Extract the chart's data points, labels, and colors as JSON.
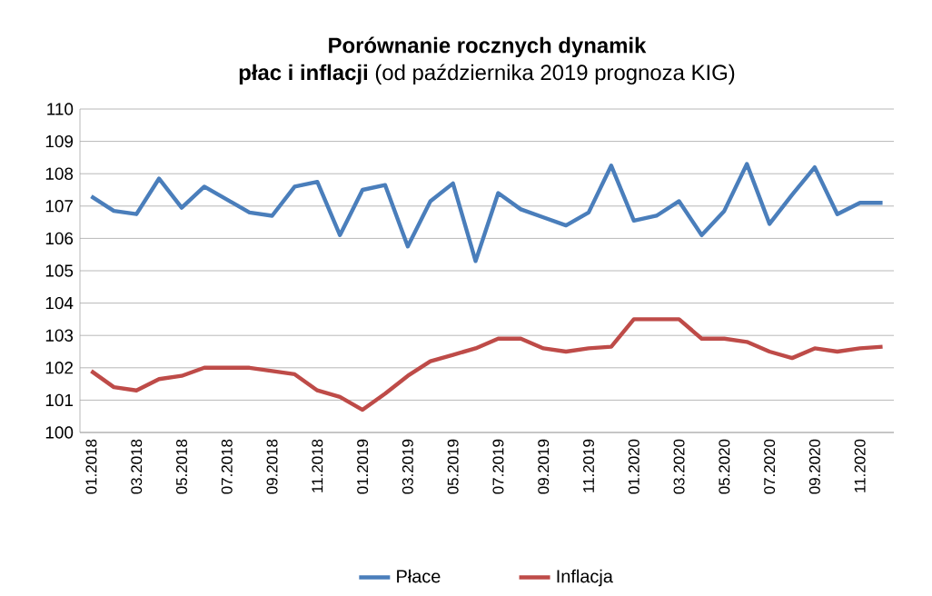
{
  "chart_data": {
    "type": "line",
    "title": "Porównanie rocznych dynamik",
    "subtitle": "**płac i inflacji** (od października 2019 prognoza KIG)",
    "categories": [
      "01.2018",
      null,
      "03.2018",
      null,
      "05.2018",
      null,
      "07.2018",
      null,
      "09.2018",
      null,
      "11.2018",
      null,
      "01.2019",
      null,
      "03.2019",
      null,
      "05.2019",
      null,
      "07.2019",
      null,
      "09.2019",
      null,
      "11.2019",
      null,
      "01.2020",
      null,
      "03.2020",
      null,
      "05.2020",
      null,
      "07.2020",
      null,
      "09.2020",
      null,
      "11.2020",
      null
    ],
    "series": [
      {
        "name": "Płace",
        "color": "#4a7ebb",
        "values": [
          107.3,
          106.85,
          106.75,
          107.85,
          106.95,
          107.6,
          107.2,
          106.8,
          106.7,
          107.6,
          107.75,
          106.1,
          107.5,
          107.65,
          105.75,
          107.15,
          107.7,
          105.3,
          107.4,
          106.9,
          106.65,
          106.4,
          106.8,
          108.25,
          106.55,
          106.7,
          107.15,
          106.1,
          106.85,
          108.3,
          106.45,
          107.35,
          108.2,
          106.75,
          107.1,
          107.1
        ]
      },
      {
        "name": "Inflacja",
        "color": "#be4b48",
        "values": [
          101.9,
          101.4,
          101.3,
          101.65,
          101.75,
          102.0,
          102.0,
          102.0,
          101.9,
          101.8,
          101.3,
          101.1,
          100.7,
          101.2,
          101.75,
          102.2,
          102.4,
          102.6,
          102.9,
          102.9,
          102.6,
          102.5,
          102.6,
          102.65,
          103.5,
          103.5,
          103.5,
          102.9,
          102.9,
          102.8,
          102.5,
          102.3,
          102.6,
          102.5,
          102.6,
          102.65
        ]
      }
    ],
    "ylim": [
      100,
      110
    ],
    "yticks": [
      100,
      101,
      102,
      103,
      104,
      105,
      106,
      107,
      108,
      109,
      110
    ],
    "grid": "y",
    "legend": "bottom",
    "marker": "none",
    "line_style": "solid"
  }
}
